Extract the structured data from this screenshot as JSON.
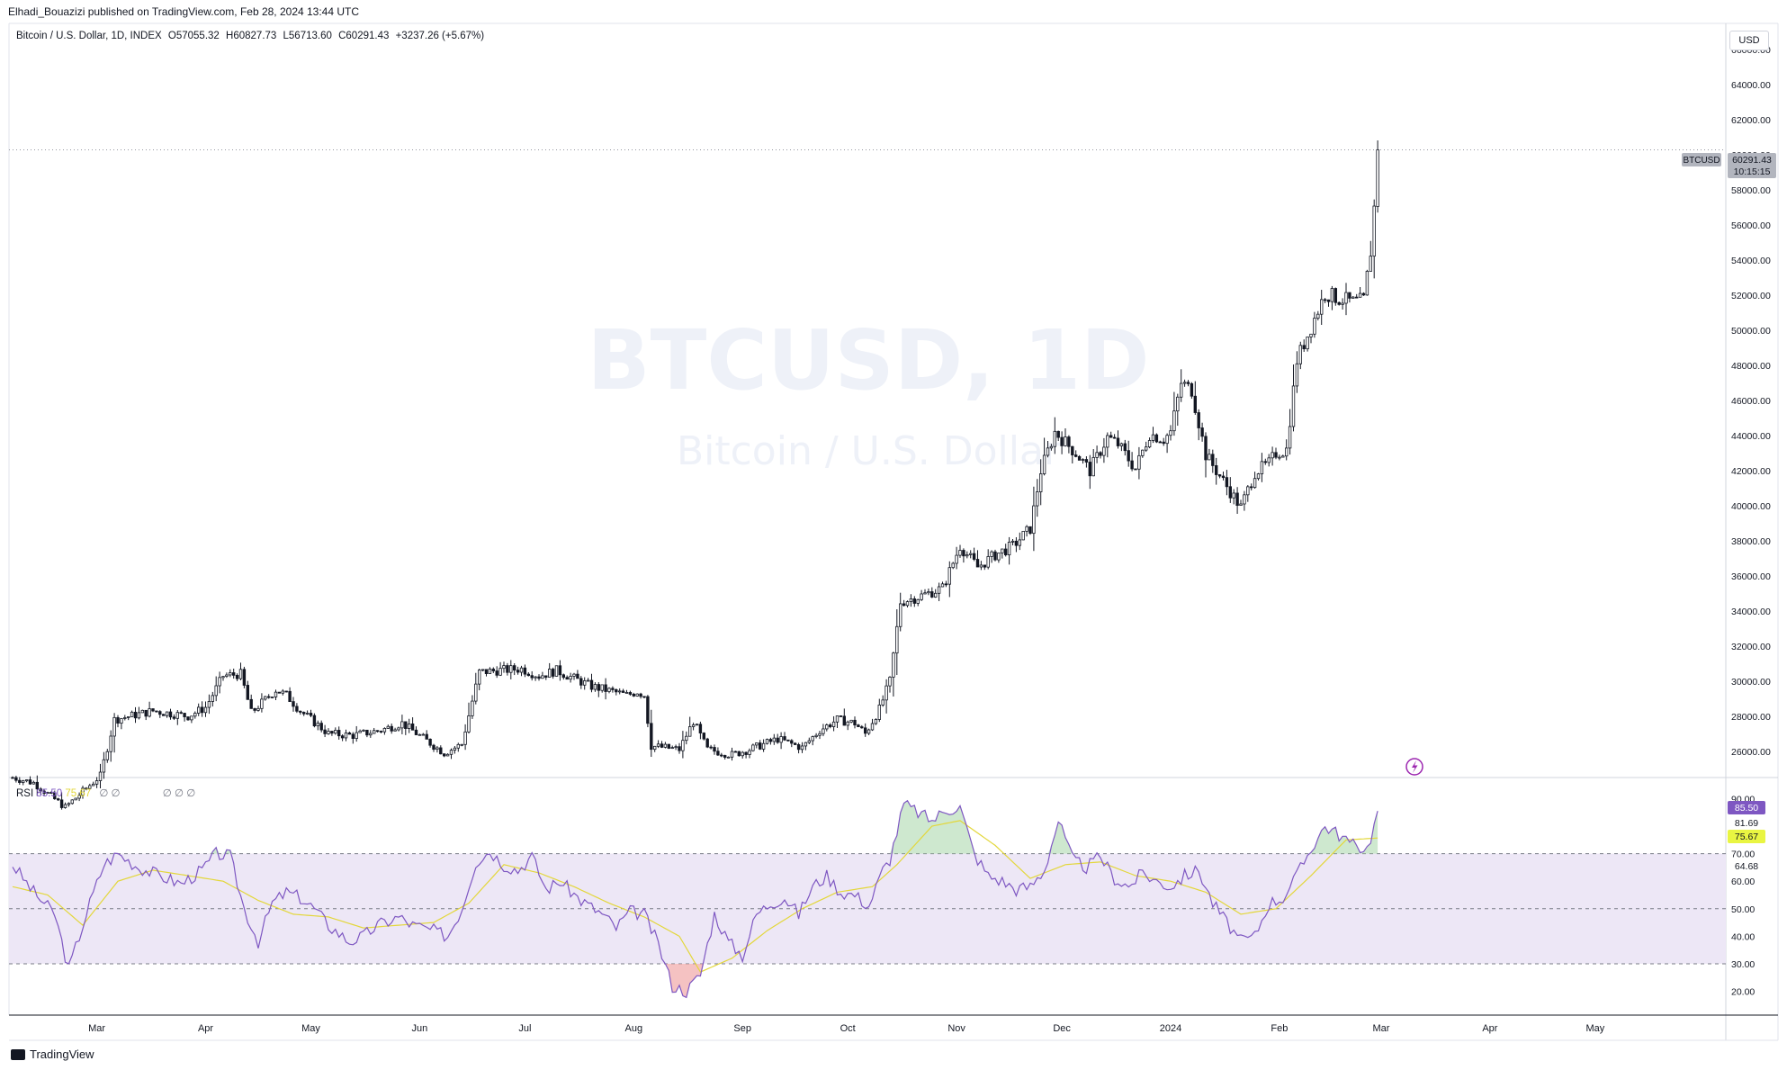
{
  "header": {
    "published_text": "Elhadi_Bouazizi published on TradingView.com, Feb 28, 2024 13:44 UTC",
    "symbol_line": "Bitcoin / U.S. Dollar, 1D, INDEX",
    "open": "O57055.32",
    "high": "H60827.73",
    "low": "L56713.60",
    "close": "C60291.43",
    "change": "+3237.26 (+5.67%)"
  },
  "watermark": {
    "line1": "BTCUSD, 1D",
    "line2": "Bitcoin / U.S. Dollar"
  },
  "currency_button": "USD",
  "price_tag": {
    "symbol": "BTCUSD",
    "price": "60291.43",
    "countdown": "10:15:15"
  },
  "rsi_legend": {
    "name": "RSI",
    "value": "85.50",
    "ma_value": "75.67"
  },
  "rsi_tags": {
    "rsi": "85.50",
    "ma": "75.67",
    "extra1": "81.69",
    "extra2": "64.68"
  },
  "footer": {
    "brand": "TradingView"
  },
  "colors": {
    "rsi_line": "#7e57c2",
    "rsi_ma": "#e3d73a",
    "band": "#ede7f6",
    "ob_fill": "#a5d6a7",
    "os_fill": "#ef9a9a",
    "candle": "#131722"
  },
  "chart_data": [
    {
      "type": "candlestick",
      "title": "Bitcoin / U.S. Dollar, 1D",
      "ylim": [
        24500,
        67500
      ],
      "y_ticks": [
        26000,
        28000,
        30000,
        32000,
        34000,
        36000,
        38000,
        40000,
        42000,
        44000,
        46000,
        48000,
        50000,
        52000,
        54000,
        56000,
        58000,
        60000,
        62000,
        64000,
        66000
      ],
      "y_tick_labels": [
        "26000.00",
        "28000.00",
        "30000.00",
        "32000.00",
        "34000.00",
        "36000.00",
        "38000.00",
        "40000.00",
        "42000.00",
        "44000.00",
        "46000.00",
        "48000.00",
        "50000.00",
        "52000.00",
        "54000.00",
        "56000.00",
        "58000.00",
        "60000.00",
        "62000.00",
        "64000.00",
        "66000.00"
      ],
      "x_labels": [
        "Mar",
        "Apr",
        "May",
        "Jun",
        "Jul",
        "Aug",
        "Sep",
        "Oct",
        "Nov",
        "Dec",
        "2024",
        "Feb",
        "Mar",
        "Apr",
        "May"
      ],
      "x_label_days": [
        24,
        55,
        85,
        116,
        146,
        177,
        208,
        238,
        269,
        299,
        330,
        361,
        390,
        421,
        451
      ],
      "anchor_closes": [
        [
          0,
          24500
        ],
        [
          6,
          24200
        ],
        [
          15,
          22800
        ],
        [
          25,
          24600
        ],
        [
          29,
          27800
        ],
        [
          40,
          28300
        ],
        [
          50,
          28000
        ],
        [
          55,
          28500
        ],
        [
          60,
          30300
        ],
        [
          65,
          30400
        ],
        [
          68,
          28200
        ],
        [
          75,
          29500
        ],
        [
          78,
          29200
        ],
        [
          82,
          28300
        ],
        [
          90,
          27000
        ],
        [
          97,
          26900
        ],
        [
          105,
          27200
        ],
        [
          111,
          27600
        ],
        [
          118,
          26600
        ],
        [
          123,
          25900
        ],
        [
          128,
          26400
        ],
        [
          133,
          30500
        ],
        [
          138,
          30600
        ],
        [
          145,
          30700
        ],
        [
          150,
          30300
        ],
        [
          155,
          30600
        ],
        [
          165,
          29700
        ],
        [
          175,
          29200
        ],
        [
          178,
          29400
        ],
        [
          180,
          29200
        ],
        [
          182,
          26300
        ],
        [
          190,
          26100
        ],
        [
          194,
          27700
        ],
        [
          198,
          26100
        ],
        [
          205,
          25800
        ],
        [
          210,
          26100
        ],
        [
          218,
          26700
        ],
        [
          225,
          26200
        ],
        [
          230,
          27200
        ],
        [
          235,
          27800
        ],
        [
          240,
          27600
        ],
        [
          243,
          27000
        ],
        [
          247,
          28400
        ],
        [
          250,
          30000
        ],
        [
          253,
          34500
        ],
        [
          258,
          34800
        ],
        [
          265,
          35300
        ],
        [
          270,
          37700
        ],
        [
          275,
          36500
        ],
        [
          280,
          37200
        ],
        [
          285,
          37700
        ],
        [
          290,
          38700
        ],
        [
          293,
          42000
        ],
        [
          297,
          44200
        ],
        [
          303,
          43000
        ],
        [
          307,
          42000
        ],
        [
          312,
          43900
        ],
        [
          315,
          43500
        ],
        [
          320,
          42100
        ],
        [
          324,
          44100
        ],
        [
          328,
          43800
        ],
        [
          330,
          44200
        ],
        [
          333,
          47000
        ],
        [
          336,
          46600
        ],
        [
          340,
          42900
        ],
        [
          343,
          42000
        ],
        [
          346,
          41100
        ],
        [
          350,
          39900
        ],
        [
          354,
          41900
        ],
        [
          358,
          42400
        ],
        [
          360,
          43000
        ],
        [
          363,
          43200
        ],
        [
          366,
          48300
        ],
        [
          370,
          50200
        ],
        [
          374,
          52100
        ],
        [
          378,
          51800
        ],
        [
          382,
          51600
        ],
        [
          385,
          51700
        ],
        [
          387,
          54500
        ],
        [
          388,
          57000
        ],
        [
          389,
          60291.43
        ]
      ],
      "last": {
        "open": 57055.32,
        "high": 60827.73,
        "low": 56713.6,
        "close": 60291.43
      },
      "last_day": 389
    },
    {
      "type": "line",
      "title": "RSI",
      "ylim": [
        12,
        97
      ],
      "y_ticks": [
        20,
        30,
        40,
        50,
        60,
        70,
        90
      ],
      "y_tick_labels": [
        "20.00",
        "30.00",
        "40.00",
        "50.00",
        "60.00",
        "70.00",
        "90.00"
      ],
      "bands": {
        "upper": 70,
        "middle": 50,
        "lower": 30
      },
      "series": [
        {
          "points": [
            [
              0,
              66
            ],
            [
              6,
              56
            ],
            [
              12,
              48
            ],
            [
              16,
              28
            ],
            [
              22,
              52
            ],
            [
              26,
              66
            ],
            [
              30,
              70
            ],
            [
              36,
              65
            ],
            [
              42,
              62
            ],
            [
              48,
              59
            ],
            [
              54,
              64
            ],
            [
              58,
              70
            ],
            [
              62,
              69
            ],
            [
              66,
              50
            ],
            [
              70,
              38
            ],
            [
              74,
              52
            ],
            [
              78,
              56
            ],
            [
              82,
              54
            ],
            [
              86,
              50
            ],
            [
              90,
              44
            ],
            [
              96,
              38
            ],
            [
              100,
              40
            ],
            [
              104,
              44
            ],
            [
              110,
              47
            ],
            [
              114,
              44
            ],
            [
              120,
              42
            ],
            [
              124,
              40
            ],
            [
              128,
              50
            ],
            [
              132,
              67
            ],
            [
              136,
              71
            ],
            [
              140,
              66
            ],
            [
              144,
              64
            ],
            [
              148,
              69
            ],
            [
              152,
              57
            ],
            [
              156,
              60
            ],
            [
              162,
              53
            ],
            [
              168,
              48
            ],
            [
              172,
              43
            ],
            [
              176,
              49
            ],
            [
              180,
              48
            ],
            [
              184,
              37
            ],
            [
              188,
              22
            ],
            [
              192,
              20
            ],
            [
              196,
              26
            ],
            [
              200,
              48
            ],
            [
              204,
              38
            ],
            [
              208,
              33
            ],
            [
              212,
              48
            ],
            [
              216,
              52
            ],
            [
              220,
              54
            ],
            [
              224,
              48
            ],
            [
              228,
              58
            ],
            [
              232,
              62
            ],
            [
              236,
              56
            ],
            [
              240,
              55
            ],
            [
              244,
              51
            ],
            [
              248,
              64
            ],
            [
              250,
              68
            ],
            [
              254,
              88
            ],
            [
              258,
              85
            ],
            [
              262,
              82
            ],
            [
              266,
              86
            ],
            [
              270,
              87
            ],
            [
              274,
              70
            ],
            [
              278,
              62
            ],
            [
              282,
              60
            ],
            [
              286,
              57
            ],
            [
              290,
              58
            ],
            [
              294,
              64
            ],
            [
              298,
              82
            ],
            [
              302,
              68
            ],
            [
              306,
              65
            ],
            [
              310,
              69
            ],
            [
              314,
              61
            ],
            [
              318,
              58
            ],
            [
              322,
              63
            ],
            [
              326,
              60
            ],
            [
              330,
              58
            ],
            [
              334,
              62
            ],
            [
              338,
              64
            ],
            [
              342,
              52
            ],
            [
              346,
              45
            ],
            [
              350,
              38
            ],
            [
              354,
              40
            ],
            [
              358,
              52
            ],
            [
              362,
              54
            ],
            [
              366,
              62
            ],
            [
              370,
              72
            ],
            [
              374,
              80
            ],
            [
              378,
              77
            ],
            [
              382,
              73
            ],
            [
              386,
              72
            ],
            [
              388,
              80
            ],
            [
              389,
              85.5
            ]
          ]
        },
        {
          "points": [
            [
              0,
              58
            ],
            [
              10,
              55
            ],
            [
              20,
              44
            ],
            [
              30,
              60
            ],
            [
              40,
              64
            ],
            [
              50,
              62
            ],
            [
              60,
              60
            ],
            [
              70,
              53
            ],
            [
              80,
              48
            ],
            [
              90,
              47
            ],
            [
              100,
              43
            ],
            [
              110,
              44
            ],
            [
              120,
              45
            ],
            [
              130,
              52
            ],
            [
              140,
              66
            ],
            [
              150,
              63
            ],
            [
              160,
              58
            ],
            [
              170,
              52
            ],
            [
              180,
              47
            ],
            [
              190,
              40
            ],
            [
              196,
              27
            ],
            [
              205,
              32
            ],
            [
              215,
              42
            ],
            [
              225,
              50
            ],
            [
              235,
              56
            ],
            [
              245,
              58
            ],
            [
              252,
              66
            ],
            [
              262,
              80
            ],
            [
              270,
              82
            ],
            [
              280,
              73
            ],
            [
              290,
              61
            ],
            [
              300,
              66
            ],
            [
              310,
              67
            ],
            [
              320,
              62
            ],
            [
              330,
              60
            ],
            [
              340,
              56
            ],
            [
              350,
              48
            ],
            [
              360,
              50
            ],
            [
              370,
              62
            ],
            [
              380,
              75
            ],
            [
              389,
              75.67
            ]
          ]
        }
      ]
    }
  ]
}
